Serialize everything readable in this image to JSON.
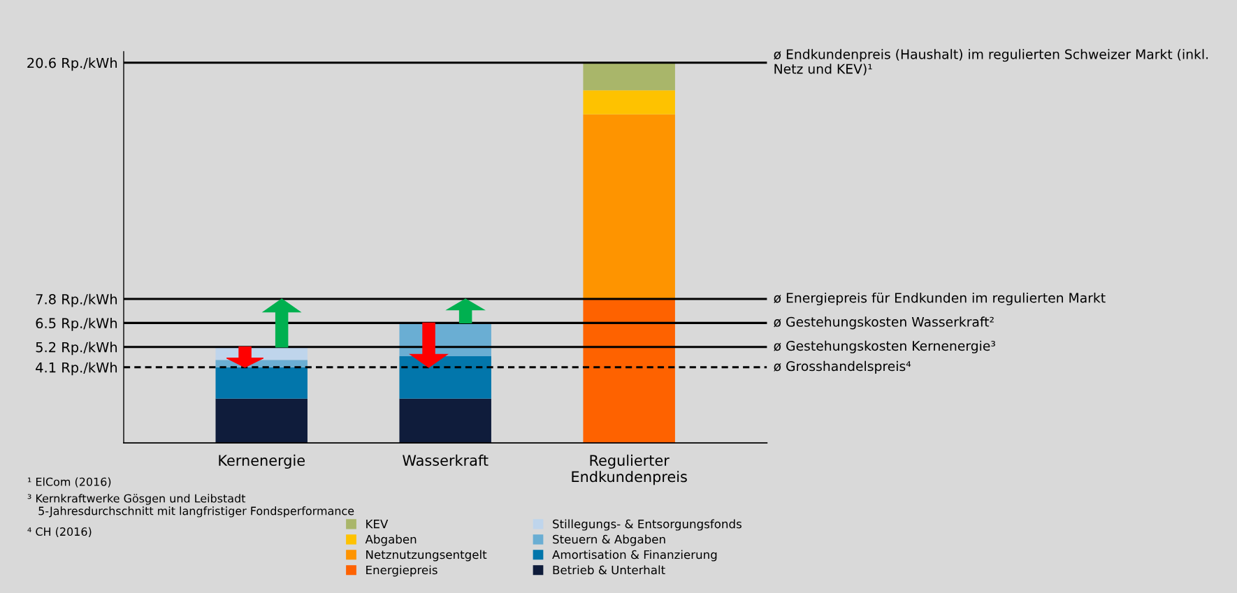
{
  "chart_data": {
    "type": "bar",
    "stacked": true,
    "categories": [
      "Kernenergie",
      "Wasserkraft",
      "Regulierter\nEndkundenpreis"
    ],
    "series": [
      {
        "name": "Betrieb & Unterhalt",
        "color": "#0f1c3b",
        "values": [
          2.4,
          2.4,
          null
        ]
      },
      {
        "name": "Amortisation & Finanzierung",
        "color": "#0276ab",
        "values": [
          1.7,
          2.3,
          null
        ]
      },
      {
        "name": "Steuern & Abgaben",
        "color": "#6aaed3",
        "values": [
          0.4,
          1.8,
          null
        ]
      },
      {
        "name": "Stillegungs- & Entsorgungsfonds",
        "color": "#bfd5ec",
        "values": [
          0.7,
          null,
          null
        ]
      },
      {
        "name": "Energiepreis",
        "color": "#fe6200",
        "values": [
          null,
          null,
          7.8
        ]
      },
      {
        "name": "Netznutzungsentgelt",
        "color": "#fe9400",
        "values": [
          null,
          null,
          10.0
        ]
      },
      {
        "name": "Abgaben",
        "color": "#fec200",
        "values": [
          null,
          null,
          1.3
        ]
      },
      {
        "name": "KEV",
        "color": "#a9b66a",
        "values": [
          null,
          null,
          1.5
        ]
      }
    ],
    "relative": false,
    "ylim": [
      0,
      21.2
    ],
    "yticks": [
      {
        "value": 4.1,
        "label": "4.1 Rp./kWh"
      },
      {
        "value": 5.2,
        "label": "5.2 Rp./kWh"
      },
      {
        "value": 6.5,
        "label": "6.5 Rp./kWh"
      },
      {
        "value": 7.8,
        "label": "7.8 Rp./kWh"
      },
      {
        "value": 20.6,
        "label": "20.6 Rp./kWh"
      }
    ],
    "grid": false,
    "legend": "bottom",
    "ref_lines": [
      {
        "axis": "y",
        "value": 20.6,
        "label": "ø Endkundenpreis (Haushalt) im regulierten Schweizer Markt (inkl. Netz und KEV)¹",
        "color": "#000000",
        "line_style": "solid"
      },
      {
        "axis": "y",
        "value": 7.8,
        "label": "ø Energiepreis für Endkunden im regulierten Markt",
        "color": "#000000",
        "line_style": "solid"
      },
      {
        "axis": "y",
        "value": 6.5,
        "label": "ø Gestehungskosten Wasserkraft²",
        "color": "#000000",
        "line_style": "solid"
      },
      {
        "axis": "y",
        "value": 5.2,
        "label": "ø Gestehungskosten Kernenergie³",
        "color": "#000000",
        "line_style": "solid"
      },
      {
        "axis": "y",
        "value": 4.1,
        "label": "ø Grosshandelspreis⁴",
        "color": "#000000",
        "line_style": "dashed"
      }
    ],
    "annotations": [
      "¹ ElCom (2016)",
      "³ Kernkraftwerke Gösgen und Leibstadt\n   5-Jahresdurchschnitt mit langfristiger Fondsperformance",
      "⁴ CH (2016)"
    ]
  }
}
